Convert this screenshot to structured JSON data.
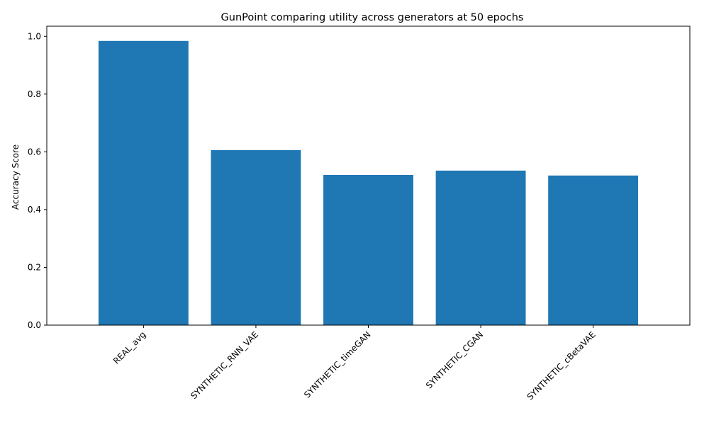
{
  "chart_data": {
    "type": "bar",
    "title": "GunPoint comparing utility across generators at 50 epochs",
    "xlabel": "",
    "ylabel": "Accuracy Score",
    "categories": [
      "REAL_avg",
      "SYNTHETIC_RNN_VAE",
      "SYNTHETIC_timeGAN",
      "SYNTHETIC_CGAN",
      "SYNTHETIC_cBetaVAE"
    ],
    "values": [
      0.984,
      0.606,
      0.52,
      0.535,
      0.518
    ],
    "ylim": [
      0,
      1.035
    ],
    "yticks": [
      0.0,
      0.2,
      0.4,
      0.6,
      0.8,
      1.0
    ],
    "ytick_labels": [
      "0.0",
      "0.2",
      "0.4",
      "0.6",
      "0.8",
      "1.0"
    ],
    "grid": false,
    "legend": "none",
    "bar_color": "#1f77b4",
    "xtick_rotation": 45
  }
}
